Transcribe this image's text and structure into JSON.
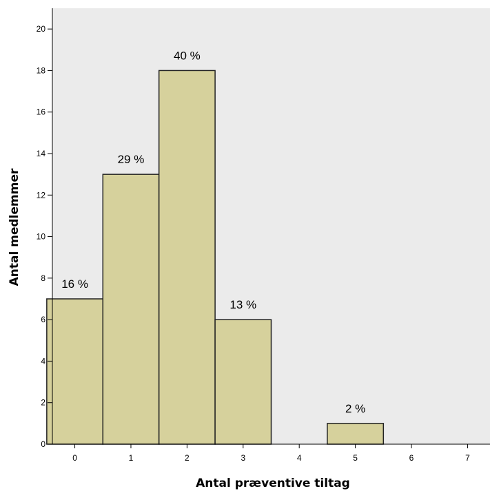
{
  "chart_data": {
    "type": "bar",
    "xlabel": "Antal præventive tiltag",
    "ylabel": "Antal medlemmer",
    "x_ticks": [
      "0",
      "1",
      "2",
      "3",
      "4",
      "5",
      "6",
      "7"
    ],
    "y_ticks": [
      "0",
      "2",
      "4",
      "6",
      "8",
      "10",
      "12",
      "14",
      "16",
      "18",
      "20"
    ],
    "ylim": [
      0,
      21
    ],
    "xlim": [
      -0.4,
      7.4
    ],
    "bars": [
      {
        "x": 0,
        "value": 7,
        "label": "16 %"
      },
      {
        "x": 1,
        "value": 13,
        "label": "29 %"
      },
      {
        "x": 2,
        "value": 18,
        "label": "40 %"
      },
      {
        "x": 3,
        "value": 6,
        "label": "13 %"
      },
      {
        "x": 5,
        "value": 1,
        "label": "2 %"
      }
    ],
    "grid": false,
    "colors": {
      "plot_background": "#ebebeb",
      "bar_fill": "#d6d19c",
      "bar_stroke": "#222222",
      "axis": "#000000"
    }
  }
}
